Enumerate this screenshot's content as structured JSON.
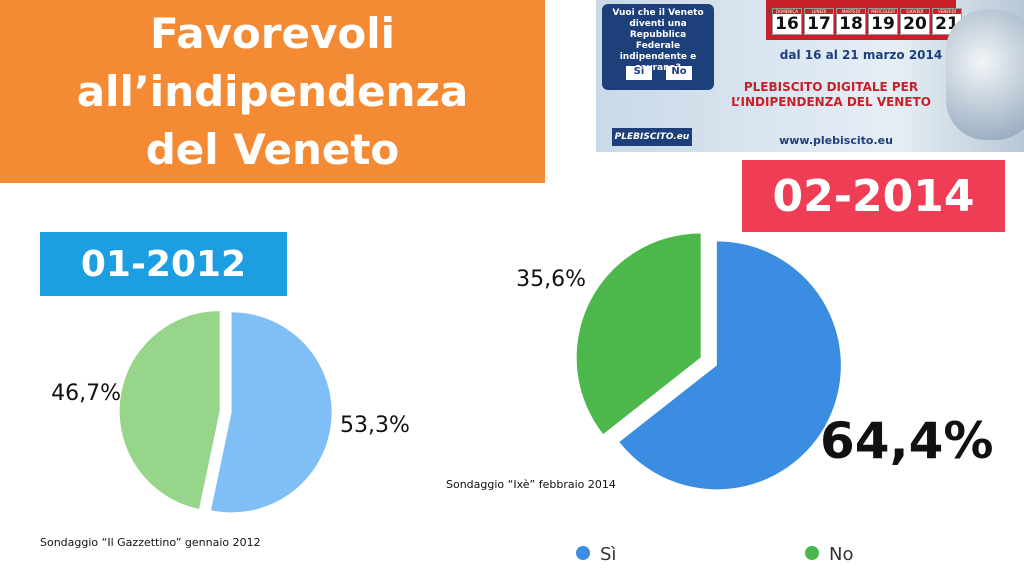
{
  "title": "Favorevoli all’indipendenza del Veneto",
  "banner": {
    "question": "Vuoi che il Veneto diventi una Repubblica Federale indipendente e sovrana?",
    "yes": "Sì",
    "no": "No",
    "weekdays": [
      "DOMENICA",
      "LUNEDÌ",
      "MARTEDÌ",
      "MERCOLEDÌ",
      "GIOVEDÌ",
      "VENERDÌ"
    ],
    "days": [
      "16",
      "17",
      "18",
      "19",
      "20",
      "21"
    ],
    "dates": "dal 16 al 21 marzo 2014",
    "headline": "PLEBISCITO DIGITALE PER L’INDIPENDENZA DEL VENETO",
    "url": "www.plebiscito.eu",
    "logo": "PLEBISCITO.eu"
  },
  "chart_data": [
    {
      "type": "pie",
      "title": "01-2012",
      "values": [
        53.3,
        46.7
      ],
      "value_labels": [
        "53,3%",
        "46,7%"
      ],
      "colors": [
        "#80bff5",
        "#97d58b"
      ],
      "source": "Sondaggio “Il Gazzettino” gennaio 2012"
    },
    {
      "type": "pie",
      "title": "02-2014",
      "categories": [
        "Sì",
        "No"
      ],
      "values": [
        64.4,
        35.6
      ],
      "value_labels": [
        "64,4%",
        "35,6%"
      ],
      "colors": [
        "#3a8de0",
        "#4cb84c"
      ],
      "source": "Sondaggio “Ixè” febbraio 2014"
    }
  ]
}
